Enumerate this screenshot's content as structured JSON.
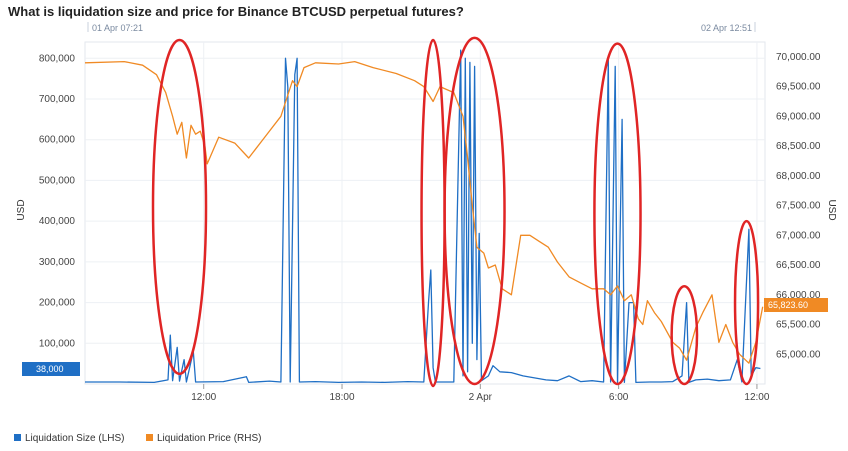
{
  "chart_data": {
    "type": "line",
    "title": "What is liquidation size and price for Binance BTCUSD perpetual futures?",
    "range_start_label": "01 Apr 07:21",
    "range_end_label": "02 Apr 12:51",
    "y_left_label": "USD",
    "y_right_label": "USD",
    "y_left_lim": [
      0,
      840000
    ],
    "y_right_lim": [
      64500,
      70250
    ],
    "y_left_ticks": [
      {
        "v": 100000,
        "label": "100,000"
      },
      {
        "v": 200000,
        "label": "200,000"
      },
      {
        "v": 300000,
        "label": "300,000"
      },
      {
        "v": 400000,
        "label": "400,000"
      },
      {
        "v": 500000,
        "label": "500,000"
      },
      {
        "v": 600000,
        "label": "600,000"
      },
      {
        "v": 700000,
        "label": "700,000"
      },
      {
        "v": 800000,
        "label": "800,000"
      }
    ],
    "y_right_ticks": [
      {
        "v": 65000,
        "label": "65,000.00"
      },
      {
        "v": 65500,
        "label": "65,500.00"
      },
      {
        "v": 66000,
        "label": "66,000.00"
      },
      {
        "v": 66500,
        "label": "66,500.00"
      },
      {
        "v": 67000,
        "label": "67,000.00"
      },
      {
        "v": 67500,
        "label": "67,500.00"
      },
      {
        "v": 68000,
        "label": "68,000.00"
      },
      {
        "v": 68500,
        "label": "68,500.00"
      },
      {
        "v": 69000,
        "label": "69,000.00"
      },
      {
        "v": 69500,
        "label": "69,500.00"
      },
      {
        "v": 70000,
        "label": "70,000.00"
      }
    ],
    "x_lim": [
      1.5,
      31.0
    ],
    "x_ticks": [
      {
        "h": 6.65,
        "label": "12:00"
      },
      {
        "h": 12.65,
        "label": "18:00"
      },
      {
        "h": 18.65,
        "label": "2 Apr"
      },
      {
        "h": 24.65,
        "label": "6:00"
      },
      {
        "h": 30.65,
        "label": "12:00"
      }
    ],
    "x_unit": "hours after 01 Apr 00:00",
    "left_badge": "38,000",
    "right_badge": "65,823.60",
    "legend": [
      {
        "label": "Liquidation Size (LHS)",
        "color": "#1f6fc5"
      },
      {
        "label": "Liquidation Price (RHS)",
        "color": "#f08a24"
      }
    ],
    "series": [
      {
        "name": "Liquidation Size (LHS)",
        "axis": "left",
        "color": "#1f6fc5",
        "points": [
          [
            1.5,
            5000
          ],
          [
            3.0,
            5000
          ],
          [
            4.5,
            4000
          ],
          [
            5.1,
            10000
          ],
          [
            5.2,
            120000
          ],
          [
            5.3,
            8000
          ],
          [
            5.5,
            90000
          ],
          [
            5.6,
            7000
          ],
          [
            5.8,
            60000
          ],
          [
            5.9,
            5000
          ],
          [
            6.2,
            80000
          ],
          [
            6.3,
            5000
          ],
          [
            7.5,
            6000
          ],
          [
            8.5,
            18000
          ],
          [
            8.6,
            4000
          ],
          [
            9.5,
            7000
          ],
          [
            10.0,
            5000
          ],
          [
            10.2,
            800000
          ],
          [
            10.3,
            730000
          ],
          [
            10.4,
            5000
          ],
          [
            10.6,
            760000
          ],
          [
            10.7,
            800000
          ],
          [
            10.8,
            5000
          ],
          [
            11.5,
            6000
          ],
          [
            12.5,
            4000
          ],
          [
            13.5,
            5000
          ],
          [
            14.5,
            4000
          ],
          [
            15.5,
            6000
          ],
          [
            16.2,
            5000
          ],
          [
            16.4,
            200000
          ],
          [
            16.5,
            280000
          ],
          [
            16.6,
            40000
          ],
          [
            16.7,
            5000
          ],
          [
            17.5,
            5000
          ],
          [
            17.8,
            820000
          ],
          [
            17.9,
            20000
          ],
          [
            18.0,
            800000
          ],
          [
            18.1,
            30000
          ],
          [
            18.2,
            790000
          ],
          [
            18.3,
            100000
          ],
          [
            18.4,
            780000
          ],
          [
            18.5,
            60000
          ],
          [
            18.6,
            370000
          ],
          [
            18.7,
            8000
          ],
          [
            19.0,
            20000
          ],
          [
            19.2,
            45000
          ],
          [
            19.5,
            30000
          ],
          [
            20.0,
            28000
          ],
          [
            20.5,
            20000
          ],
          [
            21.0,
            15000
          ],
          [
            21.5,
            10000
          ],
          [
            22.0,
            8000
          ],
          [
            22.5,
            20000
          ],
          [
            23.0,
            6000
          ],
          [
            23.5,
            8000
          ],
          [
            24.0,
            5000
          ],
          [
            24.2,
            800000
          ],
          [
            24.3,
            5000
          ],
          [
            24.5,
            780000
          ],
          [
            24.6,
            4000
          ],
          [
            24.8,
            650000
          ],
          [
            24.9,
            4000
          ],
          [
            25.1,
            200000
          ],
          [
            25.3,
            200000
          ],
          [
            25.4,
            4000
          ],
          [
            26.0,
            5000
          ],
          [
            26.5,
            5000
          ],
          [
            27.0,
            6000
          ],
          [
            27.4,
            20000
          ],
          [
            27.6,
            200000
          ],
          [
            27.7,
            4000
          ],
          [
            28.0,
            10000
          ],
          [
            28.5,
            12000
          ],
          [
            29.0,
            8000
          ],
          [
            29.5,
            10000
          ],
          [
            29.8,
            60000
          ],
          [
            30.0,
            5000
          ],
          [
            30.3,
            380000
          ],
          [
            30.4,
            20000
          ],
          [
            30.6,
            40000
          ],
          [
            30.8,
            38000
          ]
        ]
      },
      {
        "name": "Liquidation Price (RHS)",
        "axis": "right",
        "color": "#f08a24",
        "points": [
          [
            1.5,
            69900
          ],
          [
            3.2,
            69920
          ],
          [
            4.0,
            69860
          ],
          [
            4.6,
            69700
          ],
          [
            5.0,
            69400
          ],
          [
            5.3,
            69000
          ],
          [
            5.5,
            68700
          ],
          [
            5.7,
            68900
          ],
          [
            5.9,
            68300
          ],
          [
            6.1,
            68850
          ],
          [
            6.3,
            68700
          ],
          [
            6.5,
            68750
          ],
          [
            6.7,
            68500
          ],
          [
            6.8,
            68200
          ],
          [
            7.3,
            68650
          ],
          [
            8.0,
            68550
          ],
          [
            8.6,
            68300
          ],
          [
            9.2,
            68600
          ],
          [
            10.0,
            69000
          ],
          [
            10.5,
            69600
          ],
          [
            10.7,
            69500
          ],
          [
            11.0,
            69820
          ],
          [
            11.5,
            69900
          ],
          [
            12.5,
            69880
          ],
          [
            13.2,
            69920
          ],
          [
            14.0,
            69820
          ],
          [
            15.0,
            69720
          ],
          [
            15.8,
            69600
          ],
          [
            16.2,
            69500
          ],
          [
            16.6,
            69250
          ],
          [
            16.9,
            69500
          ],
          [
            17.5,
            69400
          ],
          [
            17.9,
            69000
          ],
          [
            18.1,
            68300
          ],
          [
            18.3,
            67500
          ],
          [
            18.5,
            66800
          ],
          [
            18.8,
            66700
          ],
          [
            19.0,
            66450
          ],
          [
            19.3,
            66500
          ],
          [
            19.6,
            66100
          ],
          [
            20.0,
            66000
          ],
          [
            20.4,
            67000
          ],
          [
            20.8,
            67000
          ],
          [
            21.2,
            66900
          ],
          [
            21.6,
            66800
          ],
          [
            22.0,
            66550
          ],
          [
            22.5,
            66300
          ],
          [
            23.0,
            66200
          ],
          [
            23.5,
            66100
          ],
          [
            24.0,
            66100
          ],
          [
            24.3,
            66000
          ],
          [
            24.6,
            66150
          ],
          [
            24.9,
            65900
          ],
          [
            25.2,
            66000
          ],
          [
            25.5,
            65600
          ],
          [
            25.7,
            65500
          ],
          [
            25.9,
            65900
          ],
          [
            26.2,
            65700
          ],
          [
            26.5,
            65550
          ],
          [
            27.0,
            65200
          ],
          [
            27.3,
            65100
          ],
          [
            27.6,
            64900
          ],
          [
            28.0,
            65450
          ],
          [
            28.3,
            65700
          ],
          [
            28.7,
            66000
          ],
          [
            29.0,
            65200
          ],
          [
            29.3,
            65500
          ],
          [
            29.6,
            65200
          ],
          [
            29.9,
            65000
          ],
          [
            30.3,
            64850
          ],
          [
            30.6,
            65200
          ],
          [
            30.9,
            65800
          ]
        ]
      }
    ],
    "highlights": [
      {
        "x": 5.6,
        "y": 435000,
        "rx_h": 1.15,
        "ry_v": 410000
      },
      {
        "x": 16.6,
        "y": 420000,
        "rx_h": 0.5,
        "ry_v": 425000
      },
      {
        "x": 18.4,
        "y": 425000,
        "rx_h": 1.3,
        "ry_v": 425000
      },
      {
        "x": 24.6,
        "y": 418000,
        "rx_h": 1.0,
        "ry_v": 418000
      },
      {
        "x": 27.5,
        "y": 120000,
        "rx_h": 0.55,
        "ry_v": 120000
      },
      {
        "x": 30.2,
        "y": 200000,
        "rx_h": 0.5,
        "ry_v": 200000
      }
    ]
  }
}
